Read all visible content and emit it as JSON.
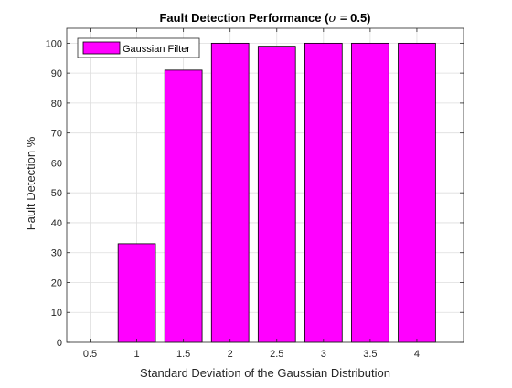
{
  "chart_data": {
    "type": "bar",
    "title_main": "Fault Detection Performance (",
    "title_sigma": "σ",
    "title_rest": " = 0.5)",
    "xlabel": "Standard Deviation of the Gaussian Distribution",
    "ylabel": "Fault Detection %",
    "x": [
      1,
      1.5,
      2,
      2.5,
      3,
      3.5,
      4
    ],
    "values": [
      33,
      91,
      100,
      99,
      100,
      100,
      100
    ],
    "xlim": [
      0.25,
      4.5
    ],
    "ylim": [
      0,
      105
    ],
    "xticks": [
      0.5,
      1,
      1.5,
      2,
      2.5,
      3,
      3.5,
      4
    ],
    "xtick_labels": [
      "0.5",
      "1",
      "1.5",
      "2",
      "2.5",
      "3",
      "3.5",
      "4"
    ],
    "yticks": [
      0,
      10,
      20,
      30,
      40,
      50,
      60,
      70,
      80,
      90,
      100
    ],
    "ytick_labels": [
      "0",
      "10",
      "20",
      "30",
      "40",
      "50",
      "60",
      "70",
      "80",
      "90",
      "100"
    ],
    "series": [
      {
        "name": "Gaussian Filter",
        "color": "#ff00ff"
      }
    ],
    "grid": true,
    "legend_position": "top-left"
  }
}
